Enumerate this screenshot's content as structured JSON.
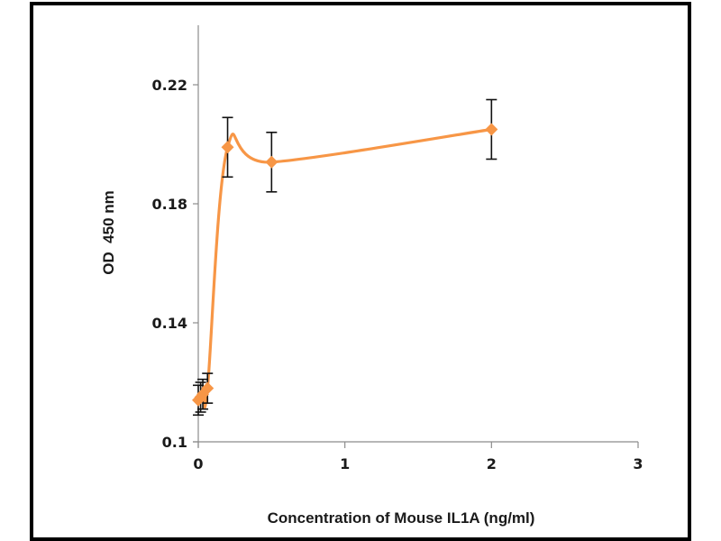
{
  "chart_data": {
    "type": "line",
    "title": "",
    "xlabel": "Concentration of Mouse IL1A (ng/ml)",
    "ylabel": "OD  450 nm",
    "xlim": [
      0,
      3
    ],
    "ylim": [
      0.1,
      0.24
    ],
    "xticks": [
      0,
      1,
      2,
      3
    ],
    "xtick_labels": [
      "0",
      "1",
      "2",
      "3"
    ],
    "yticks": [
      0.1,
      0.14,
      0.18,
      0.22
    ],
    "ytick_labels": [
      "0.1",
      "0.14",
      "0.18",
      "0.22"
    ],
    "grid": false,
    "legend": null,
    "smooth": true,
    "series": [
      {
        "name": "Mouse IL1A",
        "color": "#F79646",
        "marker": "diamond",
        "x": [
          0,
          0.016,
          0.031,
          0.063,
          0.2,
          0.5,
          2
        ],
        "y": [
          0.114,
          0.115,
          0.116,
          0.118,
          0.199,
          0.194,
          0.205
        ],
        "error": [
          0.005,
          0.005,
          0.005,
          0.005,
          0.01,
          0.01,
          0.01
        ]
      }
    ]
  }
}
